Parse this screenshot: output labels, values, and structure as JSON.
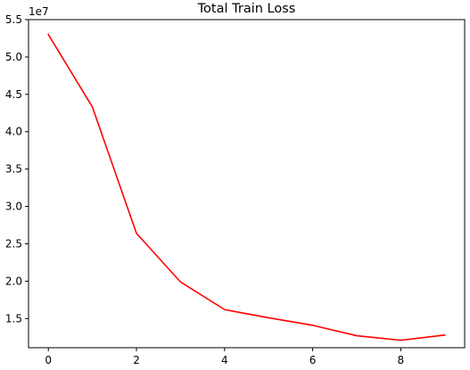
{
  "chart_data": {
    "type": "line",
    "title": "Total Train Loss",
    "xlabel": "",
    "ylabel": "",
    "y_offset_label": "1e7",
    "x": [
      0,
      1,
      2,
      3,
      4,
      5,
      6,
      7,
      8,
      9
    ],
    "series": [
      {
        "color": "#ff0000",
        "values": [
          53000000,
          43300000,
          26400000,
          19900000,
          16200000,
          15100000,
          14100000,
          12700000,
          12100000,
          12800000
        ]
      }
    ],
    "xlim": [
      -0.45,
      9.45
    ],
    "ylim": [
      11100000,
      55000000
    ],
    "x_ticks": [
      0,
      2,
      4,
      6,
      8
    ],
    "x_tick_labels": [
      "0",
      "2",
      "4",
      "6",
      "8"
    ],
    "y_ticks": [
      15000000,
      20000000,
      25000000,
      30000000,
      35000000,
      40000000,
      45000000,
      50000000,
      55000000
    ],
    "y_tick_labels": [
      "1.5",
      "2.0",
      "2.5",
      "3.0",
      "3.5",
      "4.0",
      "4.5",
      "5.0",
      "5.5"
    ],
    "grid": false,
    "legend": "none"
  }
}
